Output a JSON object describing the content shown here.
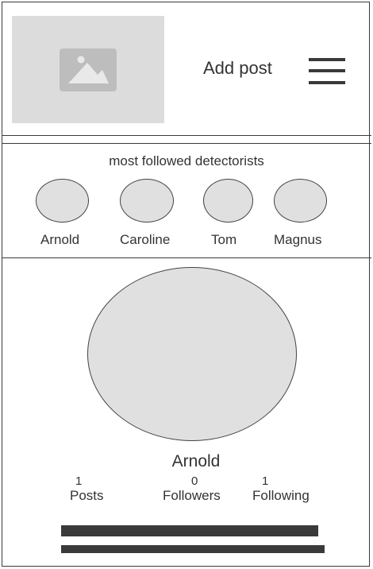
{
  "header": {
    "add_post_label": "Add post",
    "logo_icon": "image-placeholder-icon",
    "menu_icon": "hamburger-menu-icon"
  },
  "most_followed": {
    "title": "most followed detectorists",
    "users": [
      {
        "name": "Arnold"
      },
      {
        "name": "Caroline"
      },
      {
        "name": "Tom"
      },
      {
        "name": "Magnus"
      }
    ]
  },
  "profile": {
    "name": "Arnold",
    "stats": [
      {
        "value": "1",
        "label": "Posts"
      },
      {
        "value": "0",
        "label": "Followers"
      },
      {
        "value": "1",
        "label": "Following"
      }
    ]
  },
  "colors": {
    "placeholder": "#dcdcdc",
    "avatar": "#e0e0e0",
    "line": "#3a3a3a",
    "text": "#333333"
  }
}
